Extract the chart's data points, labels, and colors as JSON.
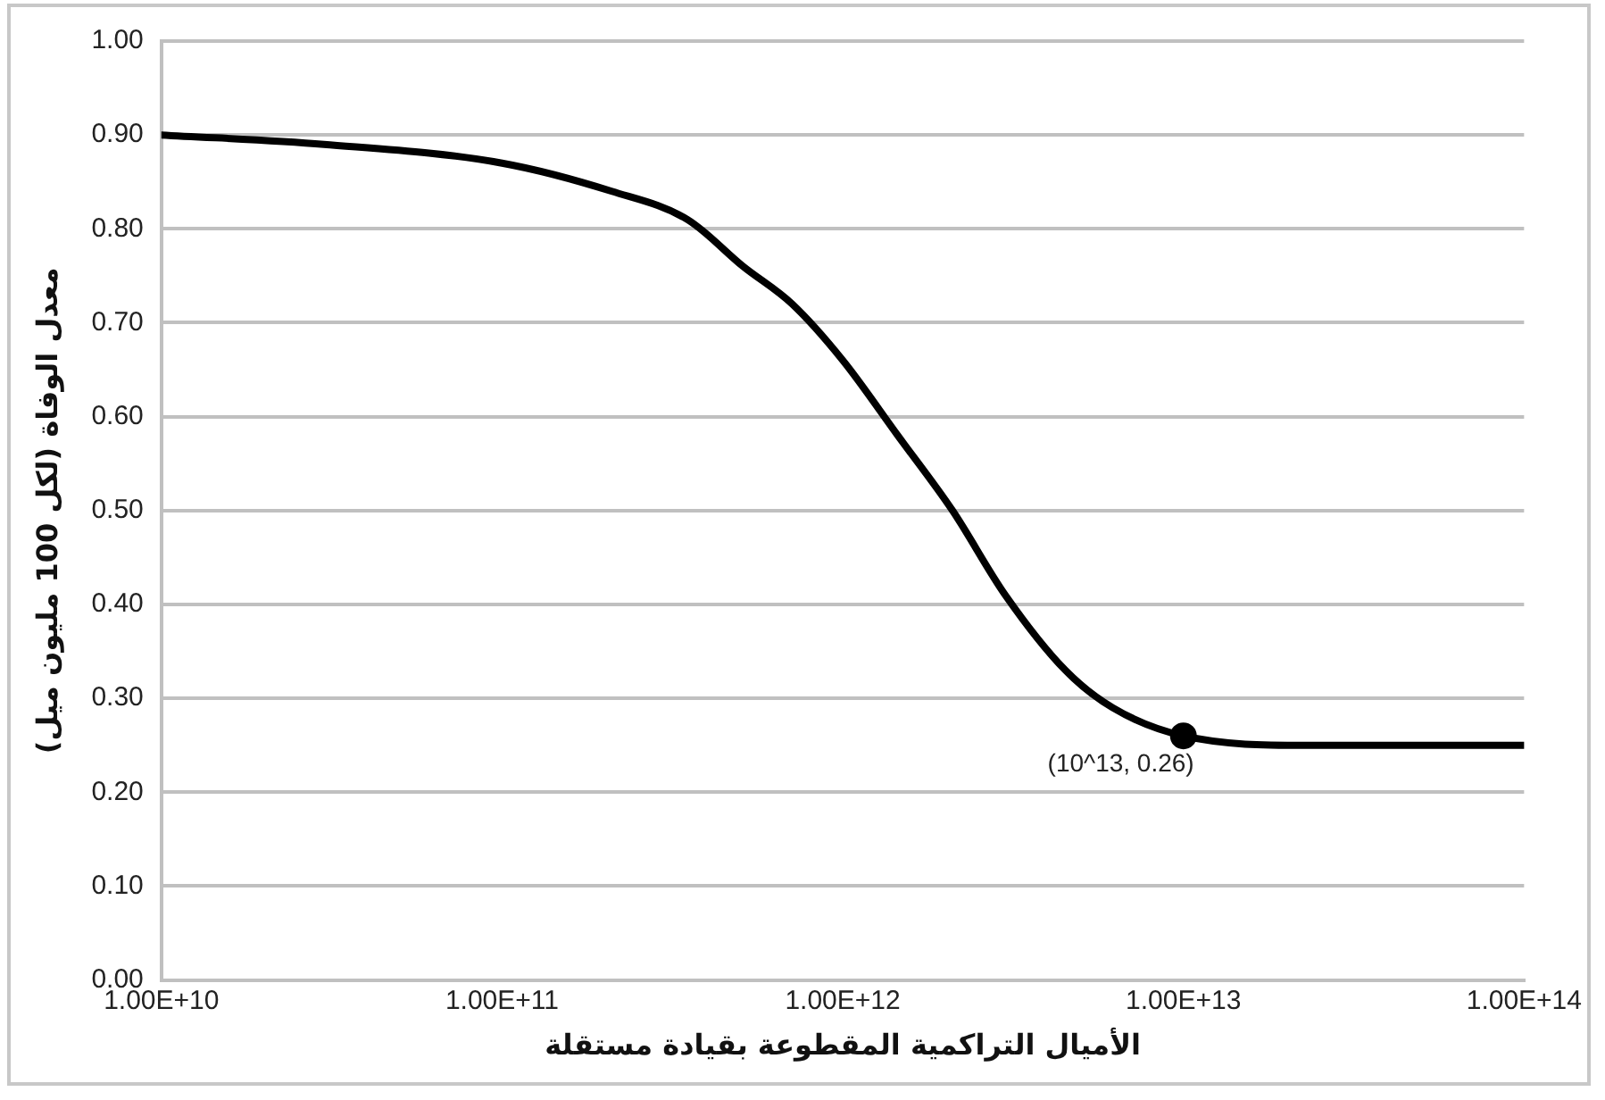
{
  "chart_data": {
    "type": "line",
    "xlabel": "الأميال التراكمية المقطوعة بقيادة مستقلة",
    "ylabel": "معدل الوفاة (لكل 100 مليون ميل)",
    "log": "x",
    "grid": "y",
    "marker": "none",
    "line_style": "solid",
    "xlim": [
      10000000000.0,
      100000000000000.0
    ],
    "xticks": [
      {
        "value": 10000000000.0,
        "label": "1.00E+10"
      },
      {
        "value": 100000000000.0,
        "label": "1.00E+11"
      },
      {
        "value": 1000000000000.0,
        "label": "1.00E+12"
      },
      {
        "value": 10000000000000.0,
        "label": "1.00E+13"
      },
      {
        "value": 100000000000000.0,
        "label": "1.00E+14"
      }
    ],
    "ylim": [
      0,
      1
    ],
    "yticks": [
      {
        "value": 0,
        "label": "0.00"
      },
      {
        "value": 0.1,
        "label": "0.10"
      },
      {
        "value": 0.2,
        "label": "0.20"
      },
      {
        "value": 0.3,
        "label": "0.30"
      },
      {
        "value": 0.4,
        "label": "0.40"
      },
      {
        "value": 0.5,
        "label": "0.50"
      },
      {
        "value": 0.6,
        "label": "0.60"
      },
      {
        "value": 0.7,
        "label": "0.70"
      },
      {
        "value": 0.8,
        "label": "0.80"
      },
      {
        "value": 0.9,
        "label": "0.90"
      },
      {
        "value": 1,
        "label": "1.00"
      }
    ],
    "series": [
      {
        "type": "line",
        "color": "#000000",
        "x": [
          10000000000.0,
          30000000000.0,
          100000000000.0,
          210000000000.0,
          350000000000.0,
          510000000000.0,
          710000000000.0,
          1000000000000.0,
          1450000000000.0,
          2100000000000.0,
          3000000000000.0,
          4500000000000.0,
          6200000000000.0,
          10000000000000.0,
          23000000000000.0,
          100000000000000.0
        ],
        "values": [
          0.9,
          0.89,
          0.87,
          0.84,
          0.81,
          0.76,
          0.72,
          0.66,
          0.58,
          0.5,
          0.41,
          0.33,
          0.29,
          0.26,
          0.25,
          0.25
        ]
      },
      {
        "type": "scatter",
        "marker": "circle",
        "color": "#000000",
        "x": [
          10000000000000.0
        ],
        "values": [
          0.26
        ],
        "value_labels": [
          "(10^13, 0.26)"
        ]
      }
    ]
  }
}
